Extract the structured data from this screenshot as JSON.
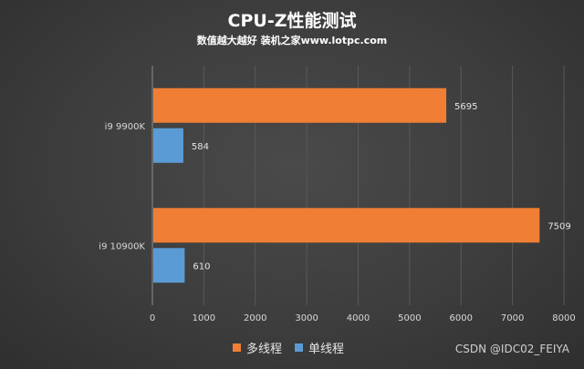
{
  "chart_data": {
    "type": "bar",
    "orientation": "horizontal",
    "title": "CPU-Z性能测试",
    "subtitle": "数值越大越好 装机之家www.lotpc.com",
    "categories": [
      "i9 9900K",
      "i9 10900K"
    ],
    "series": [
      {
        "name": "多线程",
        "color": "#f07f35",
        "values": [
          5695,
          7509
        ]
      },
      {
        "name": "单线程",
        "color": "#5b9bd5",
        "values": [
          584,
          610
        ]
      }
    ],
    "xlim": [
      0,
      8000
    ],
    "xticks": [
      "0",
      "1000",
      "2000",
      "3000",
      "4000",
      "5000",
      "6000",
      "7000",
      "8000"
    ],
    "data_labels": true,
    "grid": true,
    "legend_position": "bottom"
  },
  "watermark": "CSDN @IDC02_FEIYA"
}
